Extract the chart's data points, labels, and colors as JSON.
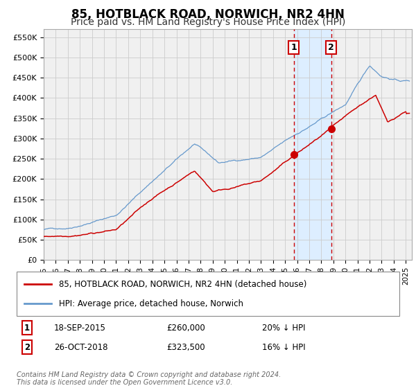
{
  "title": "85, HOTBLACK ROAD, NORWICH, NR2 4HN",
  "subtitle": "Price paid vs. HM Land Registry's House Price Index (HPI)",
  "legend_entries": [
    "85, HOTBLACK ROAD, NORWICH, NR2 4HN (detached house)",
    "HPI: Average price, detached house, Norwich"
  ],
  "annotation1_label": "1",
  "annotation1_date": "18-SEP-2015",
  "annotation1_price": "£260,000",
  "annotation1_hpi": "20% ↓ HPI",
  "annotation2_label": "2",
  "annotation2_date": "26-OCT-2018",
  "annotation2_price": "£323,500",
  "annotation2_hpi": "16% ↓ HPI",
  "marker1_date_num": 2015.72,
  "marker1_value": 260000,
  "marker2_date_num": 2018.82,
  "marker2_value": 323500,
  "vline1_date_num": 2015.72,
  "vline2_date_num": 2018.82,
  "shade_start": 2015.72,
  "shade_end": 2018.82,
  "ylim": [
    0,
    570000
  ],
  "xlim_start": 1995.0,
  "xlim_end": 2025.5,
  "ytick_values": [
    0,
    50000,
    100000,
    150000,
    200000,
    250000,
    300000,
    350000,
    400000,
    450000,
    500000,
    550000
  ],
  "ytick_labels": [
    "£0",
    "£50K",
    "£100K",
    "£150K",
    "£200K",
    "£250K",
    "£300K",
    "£350K",
    "£400K",
    "£450K",
    "£500K",
    "£550K"
  ],
  "xtick_values": [
    1995,
    1996,
    1997,
    1998,
    1999,
    2000,
    2001,
    2002,
    2003,
    2004,
    2005,
    2006,
    2007,
    2008,
    2009,
    2010,
    2011,
    2012,
    2013,
    2014,
    2015,
    2016,
    2017,
    2018,
    2019,
    2020,
    2021,
    2022,
    2023,
    2024,
    2025
  ],
  "hpi_color": "#6699cc",
  "price_color": "#cc0000",
  "background_color": "#f0f0f0",
  "grid_color": "#cccccc",
  "shade_color": "#ddeeff",
  "vline_color": "#cc0000",
  "footer_text": "Contains HM Land Registry data © Crown copyright and database right 2024.\nThis data is licensed under the Open Government Licence v3.0.",
  "title_fontsize": 12,
  "subtitle_fontsize": 10,
  "label_fontsize": 9
}
